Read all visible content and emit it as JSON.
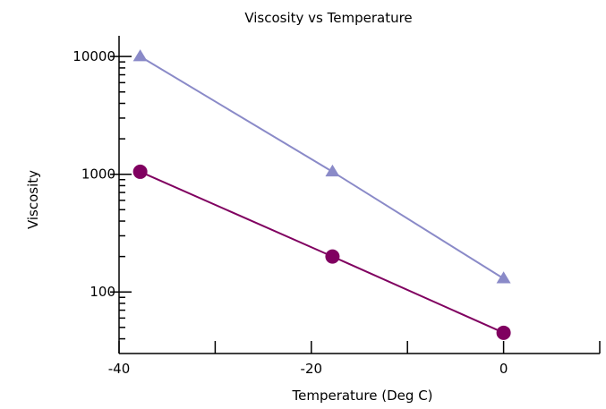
{
  "chart_data": {
    "type": "line",
    "title": "Viscosity vs Temperature",
    "xlabel": "Temperature (Deg C)",
    "ylabel": "Viscosity",
    "xlim": [
      -40,
      10
    ],
    "ylim": [
      30,
      15000
    ],
    "yscale": "log",
    "grid": false,
    "x_ticks": [
      -40,
      -20,
      0
    ],
    "x_tick_labels": [
      "-40",
      "-20",
      "0"
    ],
    "y_ticks": [
      100,
      1000,
      10000
    ],
    "y_tick_labels": [
      "100",
      "1000",
      "10000"
    ],
    "series": [
      {
        "x": [
          -37.8,
          -17.8,
          0
        ],
        "values": [
          10000,
          1050,
          130
        ],
        "color": "#8a8ac8",
        "marker": "triangle"
      },
      {
        "x": [
          -37.8,
          -17.8,
          0
        ],
        "values": [
          1050,
          200,
          45
        ],
        "color": "#800060",
        "marker": "circle"
      }
    ]
  }
}
